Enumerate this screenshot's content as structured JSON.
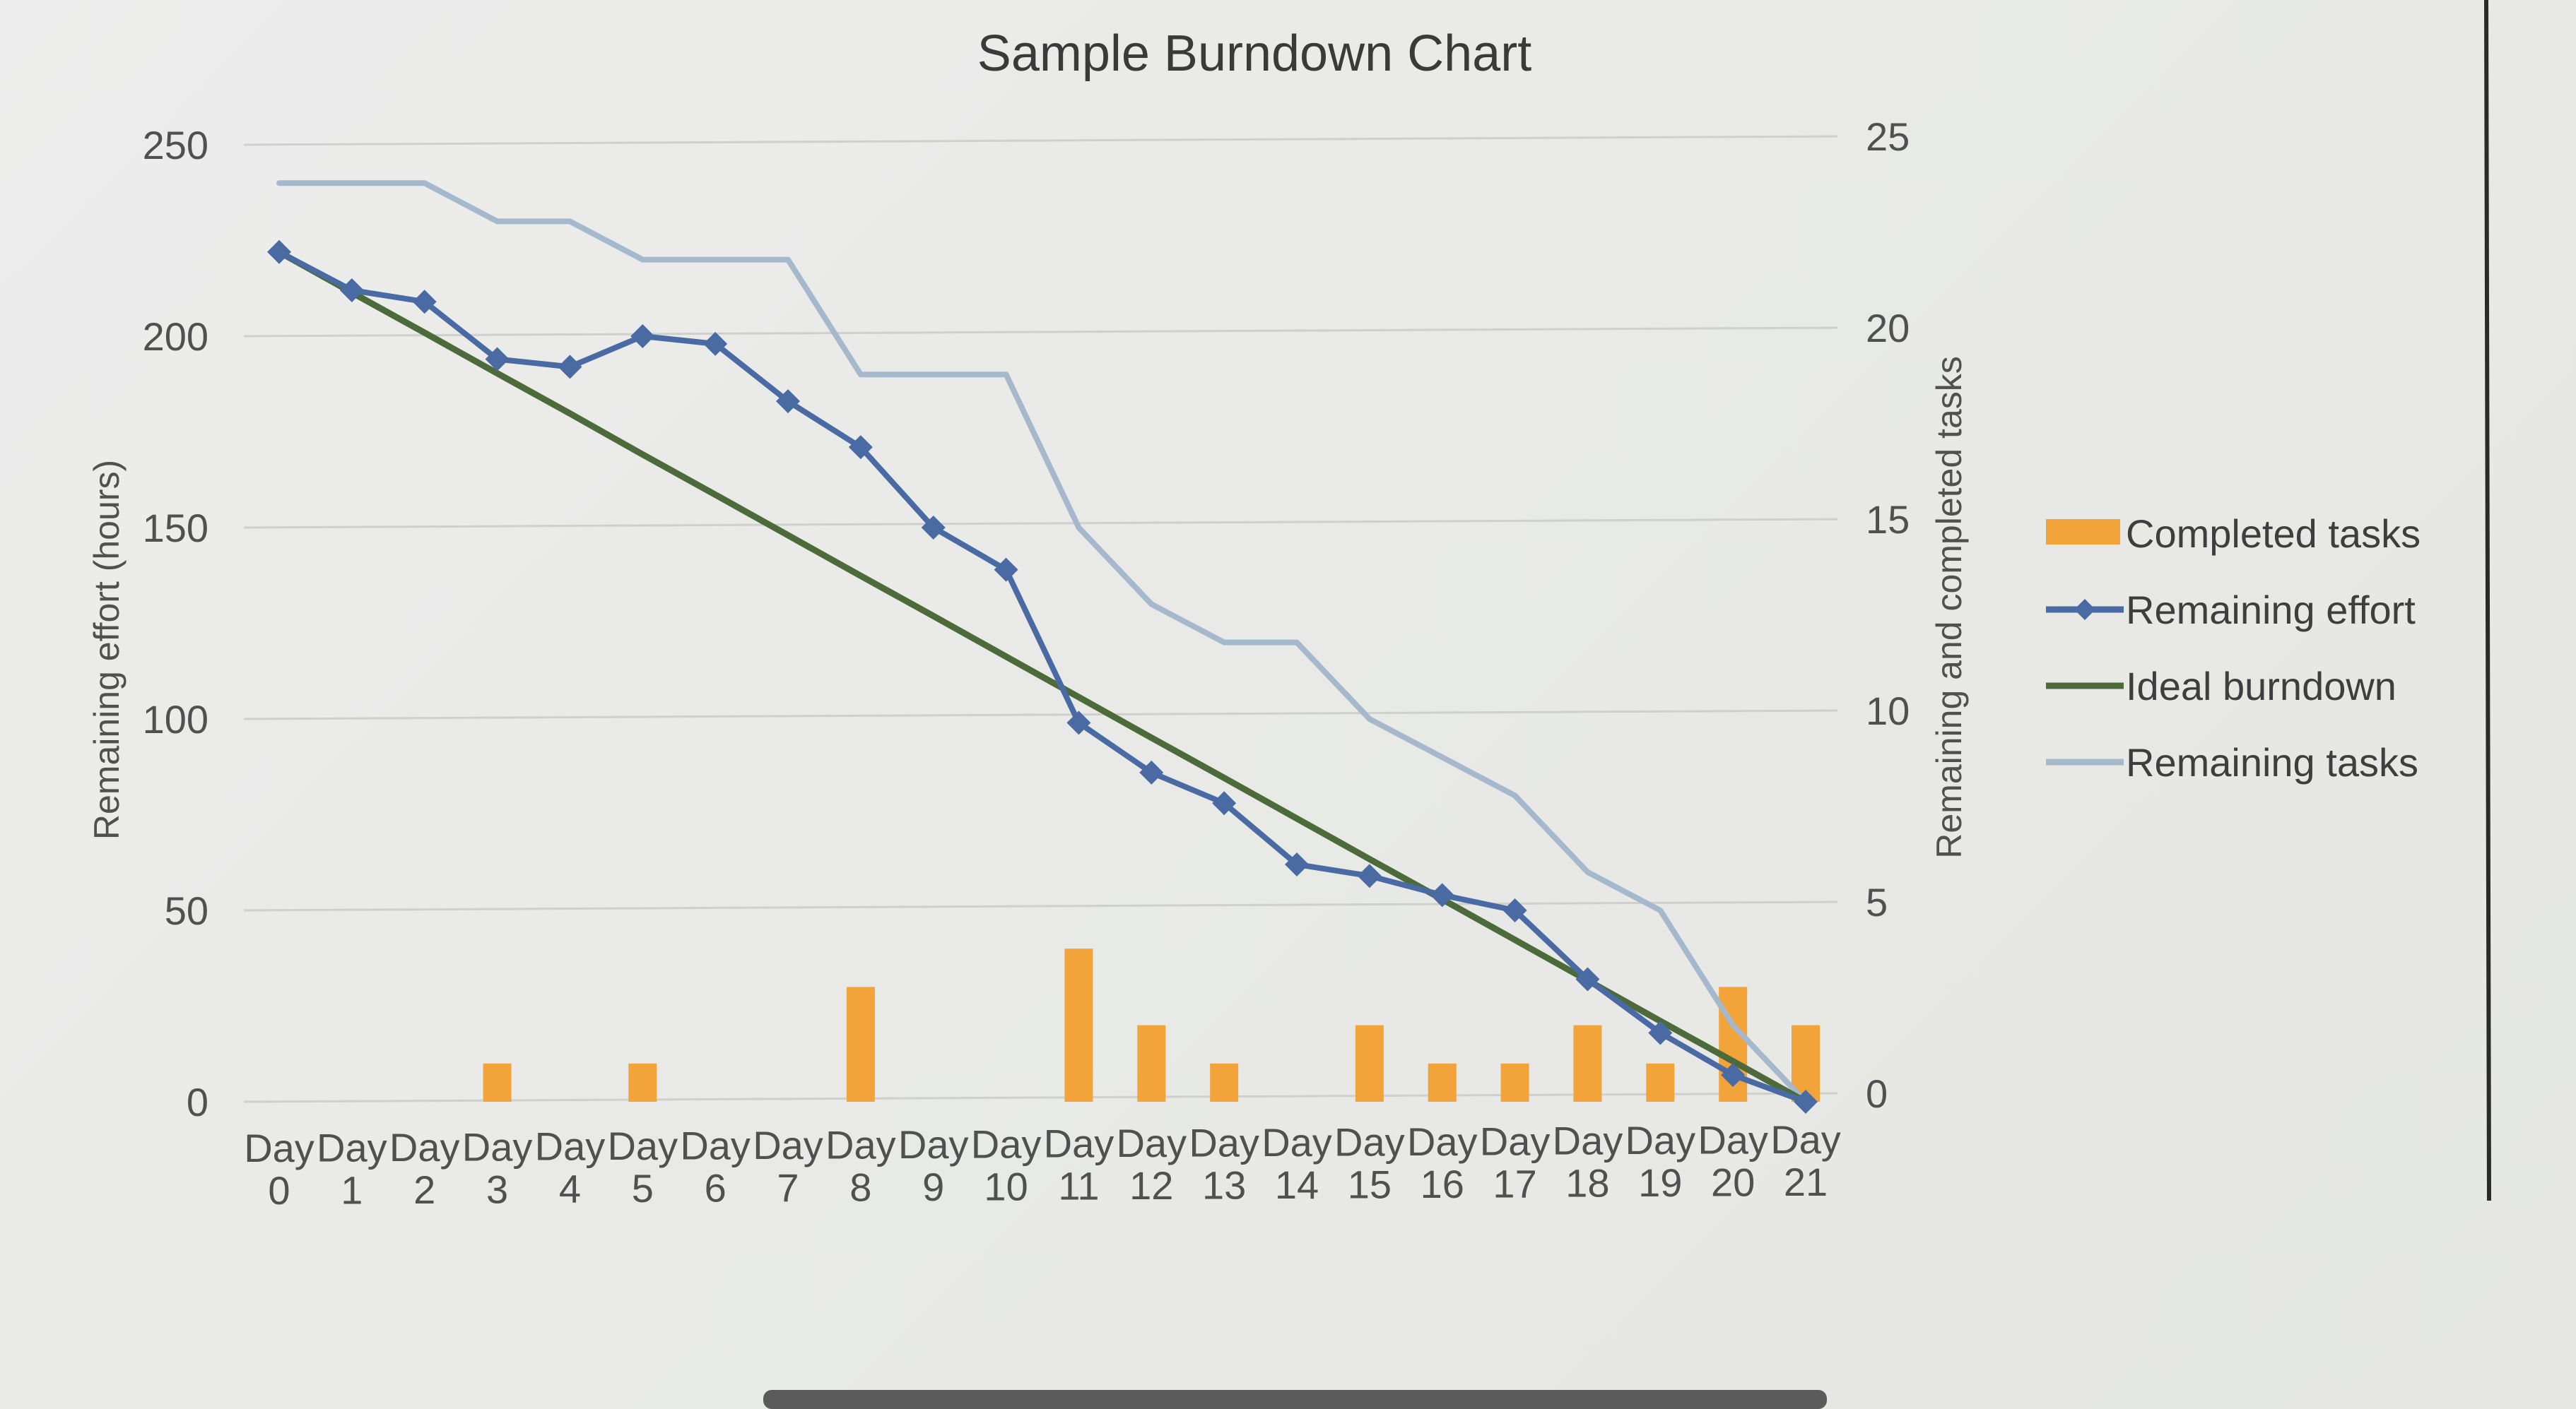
{
  "chart_data": {
    "type": "bar+line",
    "title": "Sample Burndown Chart",
    "categories": [
      "Day 0",
      "Day 1",
      "Day 2",
      "Day 3",
      "Day 4",
      "Day 5",
      "Day 6",
      "Day 7",
      "Day 8",
      "Day 9",
      "Day 10",
      "Day 11",
      "Day 12",
      "Day 13",
      "Day 14",
      "Day 15",
      "Day 16",
      "Day 17",
      "Day 18",
      "Day 19",
      "Day 20",
      "Day 21"
    ],
    "ylabel_left": "Remaining effort (hours)",
    "ylabel_right": "Remaining and completed tasks",
    "ylim_left": [
      0,
      250
    ],
    "ylim_right": [
      0,
      25
    ],
    "yticks_left": [
      "0",
      "50",
      "100",
      "150",
      "200",
      "250"
    ],
    "yticks_right": [
      "0",
      "5",
      "10",
      "15",
      "20",
      "25"
    ],
    "grid": true,
    "legend_position": "right",
    "series": [
      {
        "name": "Completed tasks",
        "type": "bar",
        "axis": "right",
        "color": "#f2a33a",
        "values": [
          0,
          0,
          0,
          1,
          0,
          1,
          0,
          0,
          3,
          0,
          0,
          4,
          2,
          1,
          0,
          2,
          1,
          1,
          2,
          1,
          3,
          2
        ]
      },
      {
        "name": "Remaining effort",
        "type": "line",
        "marker": "diamond",
        "axis": "left",
        "color": "#4a6aa3",
        "values": [
          222,
          212,
          209,
          194,
          192,
          200,
          198,
          183,
          171,
          150,
          139,
          99,
          86,
          78,
          62,
          59,
          54,
          50,
          32,
          18,
          7,
          0
        ]
      },
      {
        "name": "Ideal burndown",
        "type": "line",
        "axis": "left",
        "color": "#4d6b3a",
        "values": [
          222,
          211.4,
          200.9,
          190.3,
          179.8,
          169.1,
          158.6,
          148,
          137.4,
          126.9,
          116.3,
          105.7,
          95.1,
          84.6,
          74,
          63.4,
          52.9,
          42.3,
          31.7,
          21.1,
          10.6,
          0
        ]
      },
      {
        "name": "Remaining tasks",
        "type": "line",
        "axis": "right",
        "color": "#a6b8cc",
        "values": [
          24,
          24,
          24,
          23,
          23,
          22,
          22,
          22,
          19,
          19,
          19,
          15,
          13,
          12,
          12,
          10,
          9,
          8,
          6,
          5,
          2,
          0
        ]
      }
    ]
  }
}
